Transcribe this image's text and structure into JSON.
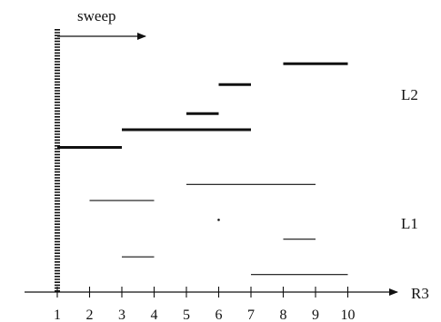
{
  "sweep_label": "sweep",
  "axis_label": "R3",
  "group_labels": {
    "L1": "L1",
    "L2": "L2"
  },
  "ticks": [
    "1",
    "2",
    "3",
    "4",
    "5",
    "6",
    "7",
    "8",
    "9",
    "10"
  ],
  "sweep_line_x": 1,
  "segments_L2": [
    {
      "x1": 1,
      "x2": 3,
      "y": 5.0
    },
    {
      "x1": 3,
      "x2": 7,
      "y": 5.55
    },
    {
      "x1": 5,
      "x2": 6,
      "y": 6.05
    },
    {
      "x1": 6,
      "x2": 7,
      "y": 6.95
    },
    {
      "x1": 8,
      "x2": 10,
      "y": 7.6
    }
  ],
  "segments_L1": [
    {
      "x1": 5,
      "x2": 9,
      "y": 3.85
    },
    {
      "x1": 2,
      "x2": 4,
      "y": 3.35
    },
    {
      "x1": 8,
      "x2": 9,
      "y": 2.15
    },
    {
      "x1": 3,
      "x2": 4,
      "y": 1.6
    },
    {
      "x1": 7,
      "x2": 10,
      "y": 1.05
    }
  ],
  "points_L1": [
    {
      "x": 6,
      "y": 2.75
    }
  ],
  "colors": {
    "ink": "#111111"
  }
}
